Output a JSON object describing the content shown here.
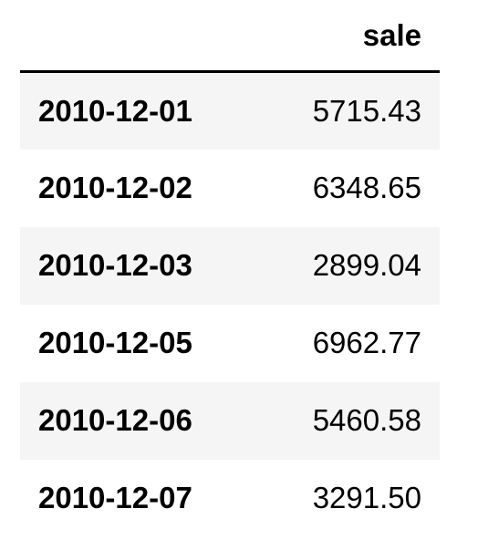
{
  "table": {
    "index_header": "",
    "columns": [
      "sale"
    ],
    "rows": [
      {
        "index": "2010-12-01",
        "sale": "5715.43"
      },
      {
        "index": "2010-12-02",
        "sale": "6348.65"
      },
      {
        "index": "2010-12-03",
        "sale": "2899.04"
      },
      {
        "index": "2010-12-05",
        "sale": "6962.77"
      },
      {
        "index": "2010-12-06",
        "sale": "5460.58"
      },
      {
        "index": "2010-12-07",
        "sale": "3291.50"
      }
    ]
  }
}
